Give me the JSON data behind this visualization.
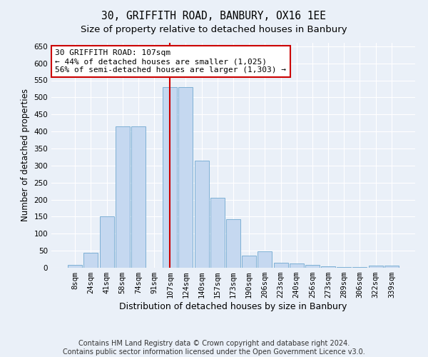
{
  "title1": "30, GRIFFITH ROAD, BANBURY, OX16 1EE",
  "title2": "Size of property relative to detached houses in Banbury",
  "xlabel": "Distribution of detached houses by size in Banbury",
  "ylabel": "Number of detached properties",
  "categories": [
    "8sqm",
    "24sqm",
    "41sqm",
    "58sqm",
    "74sqm",
    "91sqm",
    "107sqm",
    "124sqm",
    "140sqm",
    "157sqm",
    "173sqm",
    "190sqm",
    "206sqm",
    "223sqm",
    "240sqm",
    "256sqm",
    "273sqm",
    "289sqm",
    "306sqm",
    "322sqm",
    "339sqm"
  ],
  "values": [
    8,
    45,
    150,
    415,
    415,
    0,
    530,
    530,
    315,
    205,
    143,
    35,
    48,
    15,
    13,
    8,
    5,
    2,
    2,
    7,
    7
  ],
  "highlight_index": 6,
  "bar_color": "#c5d8f0",
  "bar_edge_color": "#6fa8d0",
  "highlight_line_color": "#cc0000",
  "annotation_text": "30 GRIFFITH ROAD: 107sqm\n← 44% of detached houses are smaller (1,025)\n56% of semi-detached houses are larger (1,303) →",
  "annotation_box_color": "#ffffff",
  "annotation_box_edge_color": "#cc0000",
  "ylim": [
    0,
    660
  ],
  "yticks": [
    0,
    50,
    100,
    150,
    200,
    250,
    300,
    350,
    400,
    450,
    500,
    550,
    600,
    650
  ],
  "footnote1": "Contains HM Land Registry data © Crown copyright and database right 2024.",
  "footnote2": "Contains public sector information licensed under the Open Government Licence v3.0.",
  "background_color": "#eaf0f8",
  "grid_color": "#ffffff",
  "title1_fontsize": 10.5,
  "title2_fontsize": 9.5,
  "xlabel_fontsize": 9,
  "ylabel_fontsize": 8.5,
  "tick_fontsize": 7.5,
  "annotation_fontsize": 8,
  "footnote_fontsize": 7
}
